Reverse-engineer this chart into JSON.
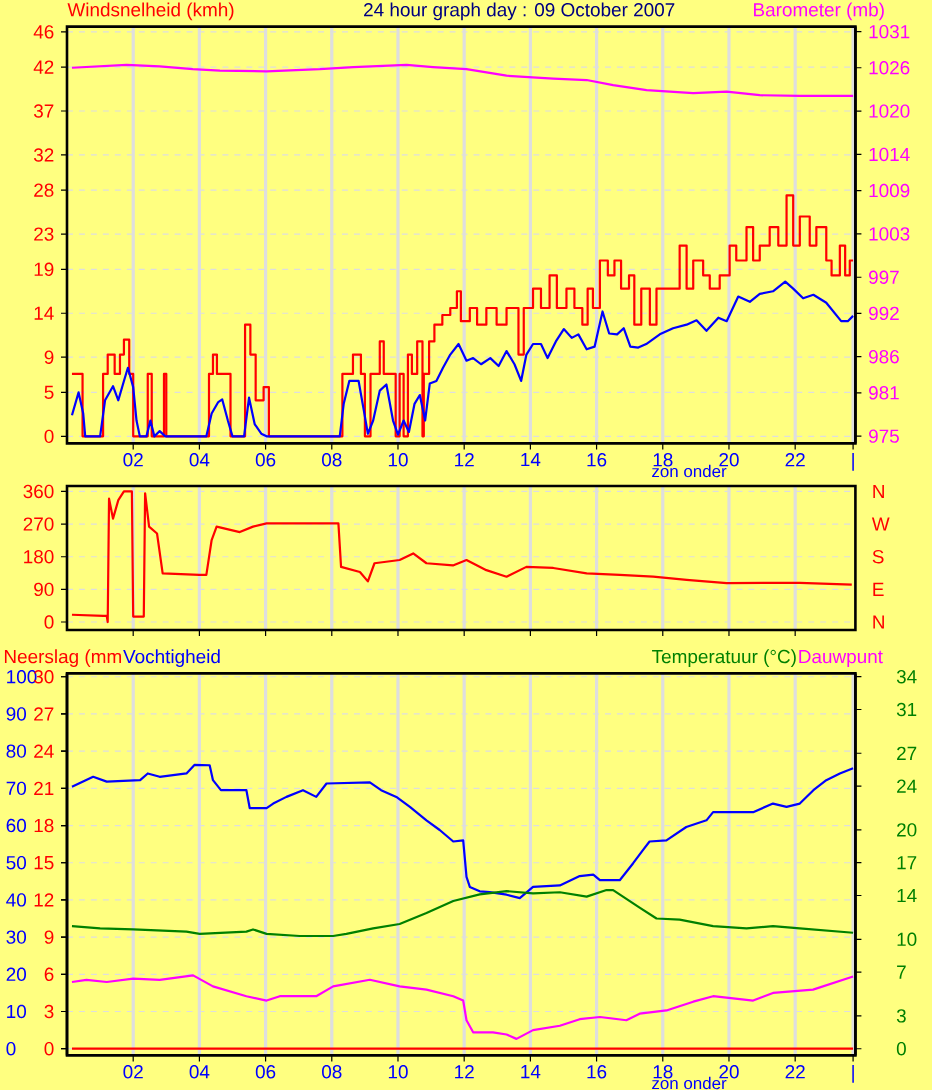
{
  "chart_data": [
    {
      "type": "line",
      "title": "24 hour graph day : 09 October 2007",
      "ylabel": "Windsnelheid (kmh)",
      "y2label": "Barometer (mb)",
      "grid": true,
      "xlim": [
        0,
        23.82
      ],
      "xticks": [
        {
          "value": 2,
          "label": "02"
        },
        {
          "value": 4,
          "label": "04"
        },
        {
          "value": 6,
          "label": "06"
        },
        {
          "value": 8,
          "label": "08"
        },
        10,
        12,
        14,
        16,
        18,
        20,
        22,
        {
          "value": 23.75,
          "label": "|"
        }
      ],
      "ylim": [
        -0.8,
        46.6
      ],
      "yticks": [
        0,
        5,
        9,
        14,
        19,
        23,
        28,
        32,
        37,
        42,
        46
      ],
      "y2lim": [
        974.0,
        1031.7
      ],
      "y2ticks": [
        975,
        981,
        986,
        992,
        997,
        1003,
        1009,
        1014,
        1020,
        1026,
        1031
      ],
      "annotations": [
        "zon onder"
      ],
      "series": [
        {
          "type": "step",
          "color": "#ff0000",
          "x": [
            0.15,
            0.35,
            0.47,
            1.0,
            1.09,
            1.23,
            1.44,
            1.6,
            1.72,
            1.88,
            2.0,
            2.4,
            2.44,
            2.56,
            2.9,
            2.93,
            3.0,
            4.25,
            4.29,
            4.41,
            4.53,
            4.86,
            4.94,
            5.34,
            5.38,
            5.54,
            5.7,
            5.94,
            6.1,
            8.24,
            8.32,
            8.64,
            8.88,
            9.0,
            9.17,
            9.45,
            9.57,
            9.81,
            9.93,
            10.05,
            10.17,
            10.3,
            10.42,
            10.58,
            10.74,
            10.78,
            10.94,
            11.1,
            11.34,
            11.58,
            11.78,
            11.9,
            12.17,
            12.39,
            12.67,
            12.98,
            13.28,
            13.48,
            13.64,
            13.8,
            14.08,
            14.32,
            14.58,
            14.8,
            15.09,
            15.33,
            15.57,
            15.73,
            15.89,
            16.1,
            16.34,
            16.54,
            16.74,
            16.98,
            17.14,
            17.35,
            17.61,
            17.81,
            18.21,
            18.51,
            18.72,
            18.92,
            19.22,
            19.42,
            19.72,
            20.02,
            20.22,
            20.53,
            20.73,
            20.93,
            21.23,
            21.49,
            21.74,
            21.94,
            22.14,
            22.44,
            22.64,
            22.94,
            23.1,
            23.35,
            23.51,
            23.65,
            23.75
          ],
          "values": [
            7.1,
            7.1,
            0,
            0,
            7.1,
            9.3,
            7.1,
            9.3,
            11,
            7.1,
            0,
            0,
            7.1,
            0,
            0,
            7.1,
            0,
            0,
            7.1,
            9.3,
            7.1,
            7.1,
            0,
            0,
            12.7,
            9.3,
            4.1,
            5.6,
            0,
            0,
            7.1,
            9.3,
            7.1,
            0,
            7.1,
            10.8,
            7.1,
            7.1,
            0,
            7.1,
            0,
            9.3,
            7.1,
            10.8,
            0,
            7.1,
            10.8,
            12.7,
            13.8,
            14.6,
            16.5,
            13.1,
            14.6,
            12.7,
            14.6,
            12.7,
            14.6,
            14.6,
            9.3,
            14.6,
            16.8,
            14.6,
            18.3,
            14.6,
            16.8,
            14.6,
            12.7,
            16.8,
            14.6,
            20,
            18.3,
            20,
            16.8,
            18.3,
            12.7,
            16.8,
            12.7,
            16.8,
            16.8,
            21.7,
            16.8,
            20,
            18.3,
            16.8,
            18.3,
            21.7,
            20,
            23.8,
            20,
            21.7,
            23.8,
            21.7,
            27.4,
            21.7,
            25,
            21.7,
            23.8,
            20,
            18.3,
            21.7,
            18.3,
            20,
            20
          ]
        },
        {
          "color": "#0000ff",
          "x": [
            0.15,
            0.35,
            0.49,
            0.55,
            1.0,
            1.15,
            1.39,
            1.55,
            1.72,
            1.84,
            2.0,
            2.1,
            2.2,
            2.4,
            2.52,
            2.64,
            2.8,
            2.97,
            4.21,
            4.37,
            4.57,
            4.69,
            4.86,
            5.0,
            5.35,
            5.5,
            5.67,
            5.87,
            6.03,
            8.24,
            8.36,
            8.53,
            8.81,
            8.97,
            9.09,
            9.25,
            9.45,
            9.65,
            9.85,
            10.0,
            10.17,
            10.33,
            10.5,
            10.66,
            10.82,
            10.96,
            11.16,
            11.36,
            11.58,
            11.83,
            12.07,
            12.27,
            12.51,
            12.79,
            13.04,
            13.28,
            13.52,
            13.72,
            13.88,
            14.08,
            14.32,
            14.52,
            14.77,
            15.01,
            15.25,
            15.45,
            15.7,
            15.94,
            16.18,
            16.38,
            16.62,
            16.82,
            17.02,
            17.26,
            17.5,
            17.91,
            18.31,
            18.72,
            19.02,
            19.32,
            19.68,
            19.93,
            20.28,
            20.63,
            20.93,
            21.33,
            21.7,
            21.94,
            22.24,
            22.55,
            22.94,
            23.39,
            23.59,
            23.75
          ],
          "values": [
            2.4,
            5,
            2.6,
            0,
            0,
            4.1,
            5.7,
            4.1,
            6.3,
            7.8,
            5.6,
            1.8,
            0,
            0,
            1.8,
            0,
            0.6,
            0,
            0,
            2.6,
            3.9,
            4.2,
            1.8,
            0,
            0,
            4.4,
            1.4,
            0.3,
            0,
            0,
            3.7,
            6.3,
            6.3,
            2.9,
            0.3,
            1.8,
            5.2,
            5.9,
            1.8,
            0.2,
            1.8,
            0.5,
            3.7,
            4.7,
            1.8,
            6.0,
            6.3,
            7.8,
            9.3,
            10.5,
            8.6,
            8.9,
            8.2,
            8.9,
            8.0,
            9.7,
            8.2,
            6.3,
            9.3,
            10.5,
            10.5,
            8.9,
            10.8,
            12.2,
            11.2,
            11.6,
            9.9,
            10.2,
            14.2,
            11.7,
            11.6,
            12.3,
            10.2,
            10.1,
            10.5,
            11.6,
            12.3,
            12.7,
            13.2,
            12.0,
            13.5,
            13.1,
            15.9,
            15.3,
            16.2,
            16.5,
            17.6,
            16.8,
            15.7,
            16.1,
            15.2,
            13.1,
            13.1,
            13.7
          ]
        },
        {
          "color": "#ff00ff",
          "axis": "y2",
          "x": [
            0.15,
            1.8,
            2.8,
            3.8,
            4.62,
            6.03,
            7.64,
            8.65,
            10.26,
            11.06,
            12.07,
            13.28,
            14.69,
            15.7,
            16.5,
            17.51,
            18.92,
            19.93,
            20.93,
            22.14,
            23.75
          ],
          "values": [
            1026.0,
            1026.4,
            1026.2,
            1025.8,
            1025.6,
            1025.5,
            1025.8,
            1026.1,
            1026.4,
            1026.1,
            1025.8,
            1024.9,
            1024.5,
            1024.3,
            1023.6,
            1022.9,
            1022.5,
            1022.7,
            1022.2,
            1022.1,
            1022.1
          ]
        }
      ]
    },
    {
      "type": "line",
      "grid": true,
      "tick_labels": "y",
      "xlim": [
        0,
        23.82
      ],
      "xticks": [
        {
          "value": 2,
          "label": null
        },
        {
          "value": 4,
          "label": null
        },
        {
          "value": 6,
          "label": null
        },
        {
          "value": 8,
          "label": null
        },
        {
          "value": 10,
          "label": null
        },
        {
          "value": 12,
          "label": null
        },
        {
          "value": 14,
          "label": null
        },
        {
          "value": 16,
          "label": null
        },
        {
          "value": 18,
          "label": null
        },
        {
          "value": 20,
          "label": null
        },
        {
          "value": 22,
          "label": null
        }
      ],
      "ylim": [
        -22,
        375
      ],
      "yticks": [
        0,
        90,
        180,
        270,
        360
      ],
      "annotations": [
        "N",
        "W",
        "S",
        "E",
        "N"
      ],
      "series": [
        {
          "color": "#ff0000",
          "x": [
            0.15,
            1.1,
            1.2,
            1.23,
            1.27,
            1.39,
            1.55,
            1.72,
            1.96,
            2.0,
            2.32,
            2.36,
            2.48,
            2.72,
            2.89,
            4.0,
            4.21,
            4.37,
            4.52,
            5.22,
            5.62,
            6.03,
            8.2,
            8.28,
            8.85,
            9.09,
            9.29,
            10.05,
            10.46,
            10.86,
            11.66,
            12.07,
            12.67,
            13.28,
            13.88,
            14.69,
            15.7,
            16.7,
            17.71,
            18.72,
            19.93,
            21.13,
            22.14,
            23.71
          ],
          "values": [
            20,
            17,
            17,
            0,
            340,
            285,
            336,
            360,
            360,
            15,
            15,
            355,
            263,
            244,
            134,
            130,
            130,
            226,
            263,
            248,
            263,
            272,
            272,
            152,
            138,
            112,
            162,
            171,
            189,
            162,
            156,
            171,
            143,
            125,
            152,
            149,
            134,
            130,
            125,
            116,
            107,
            108,
            108,
            103
          ]
        }
      ]
    },
    {
      "type": "line",
      "grid": true,
      "legend": "top",
      "xlim": [
        0,
        23.82
      ],
      "xticks": [
        {
          "value": 2,
          "label": "02"
        },
        {
          "value": 4,
          "label": "04"
        },
        {
          "value": 6,
          "label": "06"
        },
        {
          "value": 8,
          "label": "08"
        },
        10,
        12,
        14,
        16,
        18,
        20,
        22,
        {
          "value": 23.75,
          "label": "|"
        }
      ],
      "ylim": [
        -1.8,
        100.9
      ],
      "yticks": [
        0,
        10,
        20,
        30,
        40,
        50,
        60,
        70,
        80,
        90,
        100
      ],
      "y3lim": [
        -0.54,
        30.27
      ],
      "y3ticks": [
        0,
        3,
        6,
        9,
        12,
        15,
        18,
        21,
        24,
        27,
        30
      ],
      "y2lim": [
        -0.61,
        34.3
      ],
      "y2ticks": [
        0,
        3,
        7,
        10,
        14,
        17,
        20,
        24,
        27,
        31,
        34
      ],
      "annotations": [
        "zon onder"
      ],
      "series": [
        {
          "name": "Neerslag (mm",
          "color": "#ff0000",
          "axis": "y3",
          "x": [
            0.15,
            23.75
          ],
          "values": [
            0,
            0
          ]
        },
        {
          "name": "Vochtigheid",
          "color": "#0000ff",
          "x": [
            0.15,
            0.79,
            1.2,
            2.21,
            2.44,
            2.8,
            3.61,
            3.85,
            4.31,
            4.41,
            4.65,
            5.42,
            5.52,
            6.03,
            6.23,
            6.63,
            7.13,
            7.53,
            7.84,
            9.15,
            9.49,
            9.95,
            10.36,
            10.86,
            11.26,
            11.67,
            11.97,
            12.07,
            12.17,
            12.47,
            12.77,
            13.28,
            13.68,
            14.08,
            14.89,
            15.49,
            15.9,
            16.1,
            16.7,
            17.1,
            17.4,
            17.6,
            18.11,
            18.71,
            19.32,
            19.52,
            20.73,
            21.33,
            21.74,
            22.14,
            22.55,
            22.94,
            23.35,
            23.75
          ],
          "values": [
            70.4,
            73.1,
            71.8,
            72.2,
            74,
            73.1,
            74,
            76.3,
            76.2,
            72.2,
            69.5,
            69.5,
            64.7,
            64.7,
            65.9,
            67.7,
            69.5,
            67.7,
            71.3,
            71.6,
            69.5,
            67.7,
            65,
            61.4,
            58.8,
            55.7,
            56,
            46.2,
            43.5,
            42.3,
            42.1,
            41.4,
            40.5,
            43.5,
            43.9,
            46.4,
            46.8,
            45.3,
            45.3,
            49.8,
            53.4,
            55.7,
            56,
            59.6,
            61.4,
            63.6,
            63.6,
            65.9,
            65,
            65.9,
            69.5,
            72.2,
            74,
            75.4
          ]
        },
        {
          "name": "Temperatuur (°C)",
          "color": "#008000",
          "axis": "y2",
          "x": [
            0.15,
            1.0,
            2.0,
            3.61,
            4.01,
            5.42,
            5.62,
            6.03,
            7.03,
            8.04,
            8.44,
            9.25,
            10.05,
            10.86,
            11.67,
            12.47,
            13.28,
            14.08,
            14.89,
            15.7,
            16.3,
            16.5,
            17.3,
            17.81,
            18.51,
            19.52,
            20.53,
            21.33,
            22.14,
            23.75
          ],
          "values": [
            11.2,
            11.0,
            10.9,
            10.7,
            10.5,
            10.7,
            10.9,
            10.5,
            10.3,
            10.3,
            10.5,
            11.0,
            11.4,
            12.4,
            13.5,
            14.1,
            14.4,
            14.2,
            14.3,
            13.9,
            14.5,
            14.5,
            12.9,
            11.9,
            11.8,
            11.2,
            11.0,
            11.2,
            11.0,
            10.6
          ]
        },
        {
          "name": "Dauwpunt",
          "color": "#ff00ff",
          "axis": "y2",
          "x": [
            0.15,
            0.59,
            1.2,
            2.0,
            2.8,
            3.81,
            4.41,
            5.42,
            6.03,
            6.43,
            7.53,
            8.04,
            9.15,
            10.05,
            10.86,
            11.67,
            11.97,
            12.07,
            12.27,
            12.87,
            13.28,
            13.58,
            14.08,
            14.89,
            15.49,
            16.1,
            16.9,
            17.3,
            18.11,
            18.92,
            19.52,
            20.73,
            21.33,
            22.54,
            23.75
          ],
          "values": [
            6.1,
            6.3,
            6.1,
            6.4,
            6.3,
            6.7,
            5.7,
            4.8,
            4.4,
            4.8,
            4.8,
            5.7,
            6.3,
            5.7,
            5.4,
            4.8,
            4.4,
            2.6,
            1.5,
            1.5,
            1.3,
            0.9,
            1.7,
            2.1,
            2.7,
            2.9,
            2.6,
            3.2,
            3.5,
            4.3,
            4.8,
            4.4,
            5.1,
            5.4,
            6.6
          ]
        }
      ]
    }
  ]
}
